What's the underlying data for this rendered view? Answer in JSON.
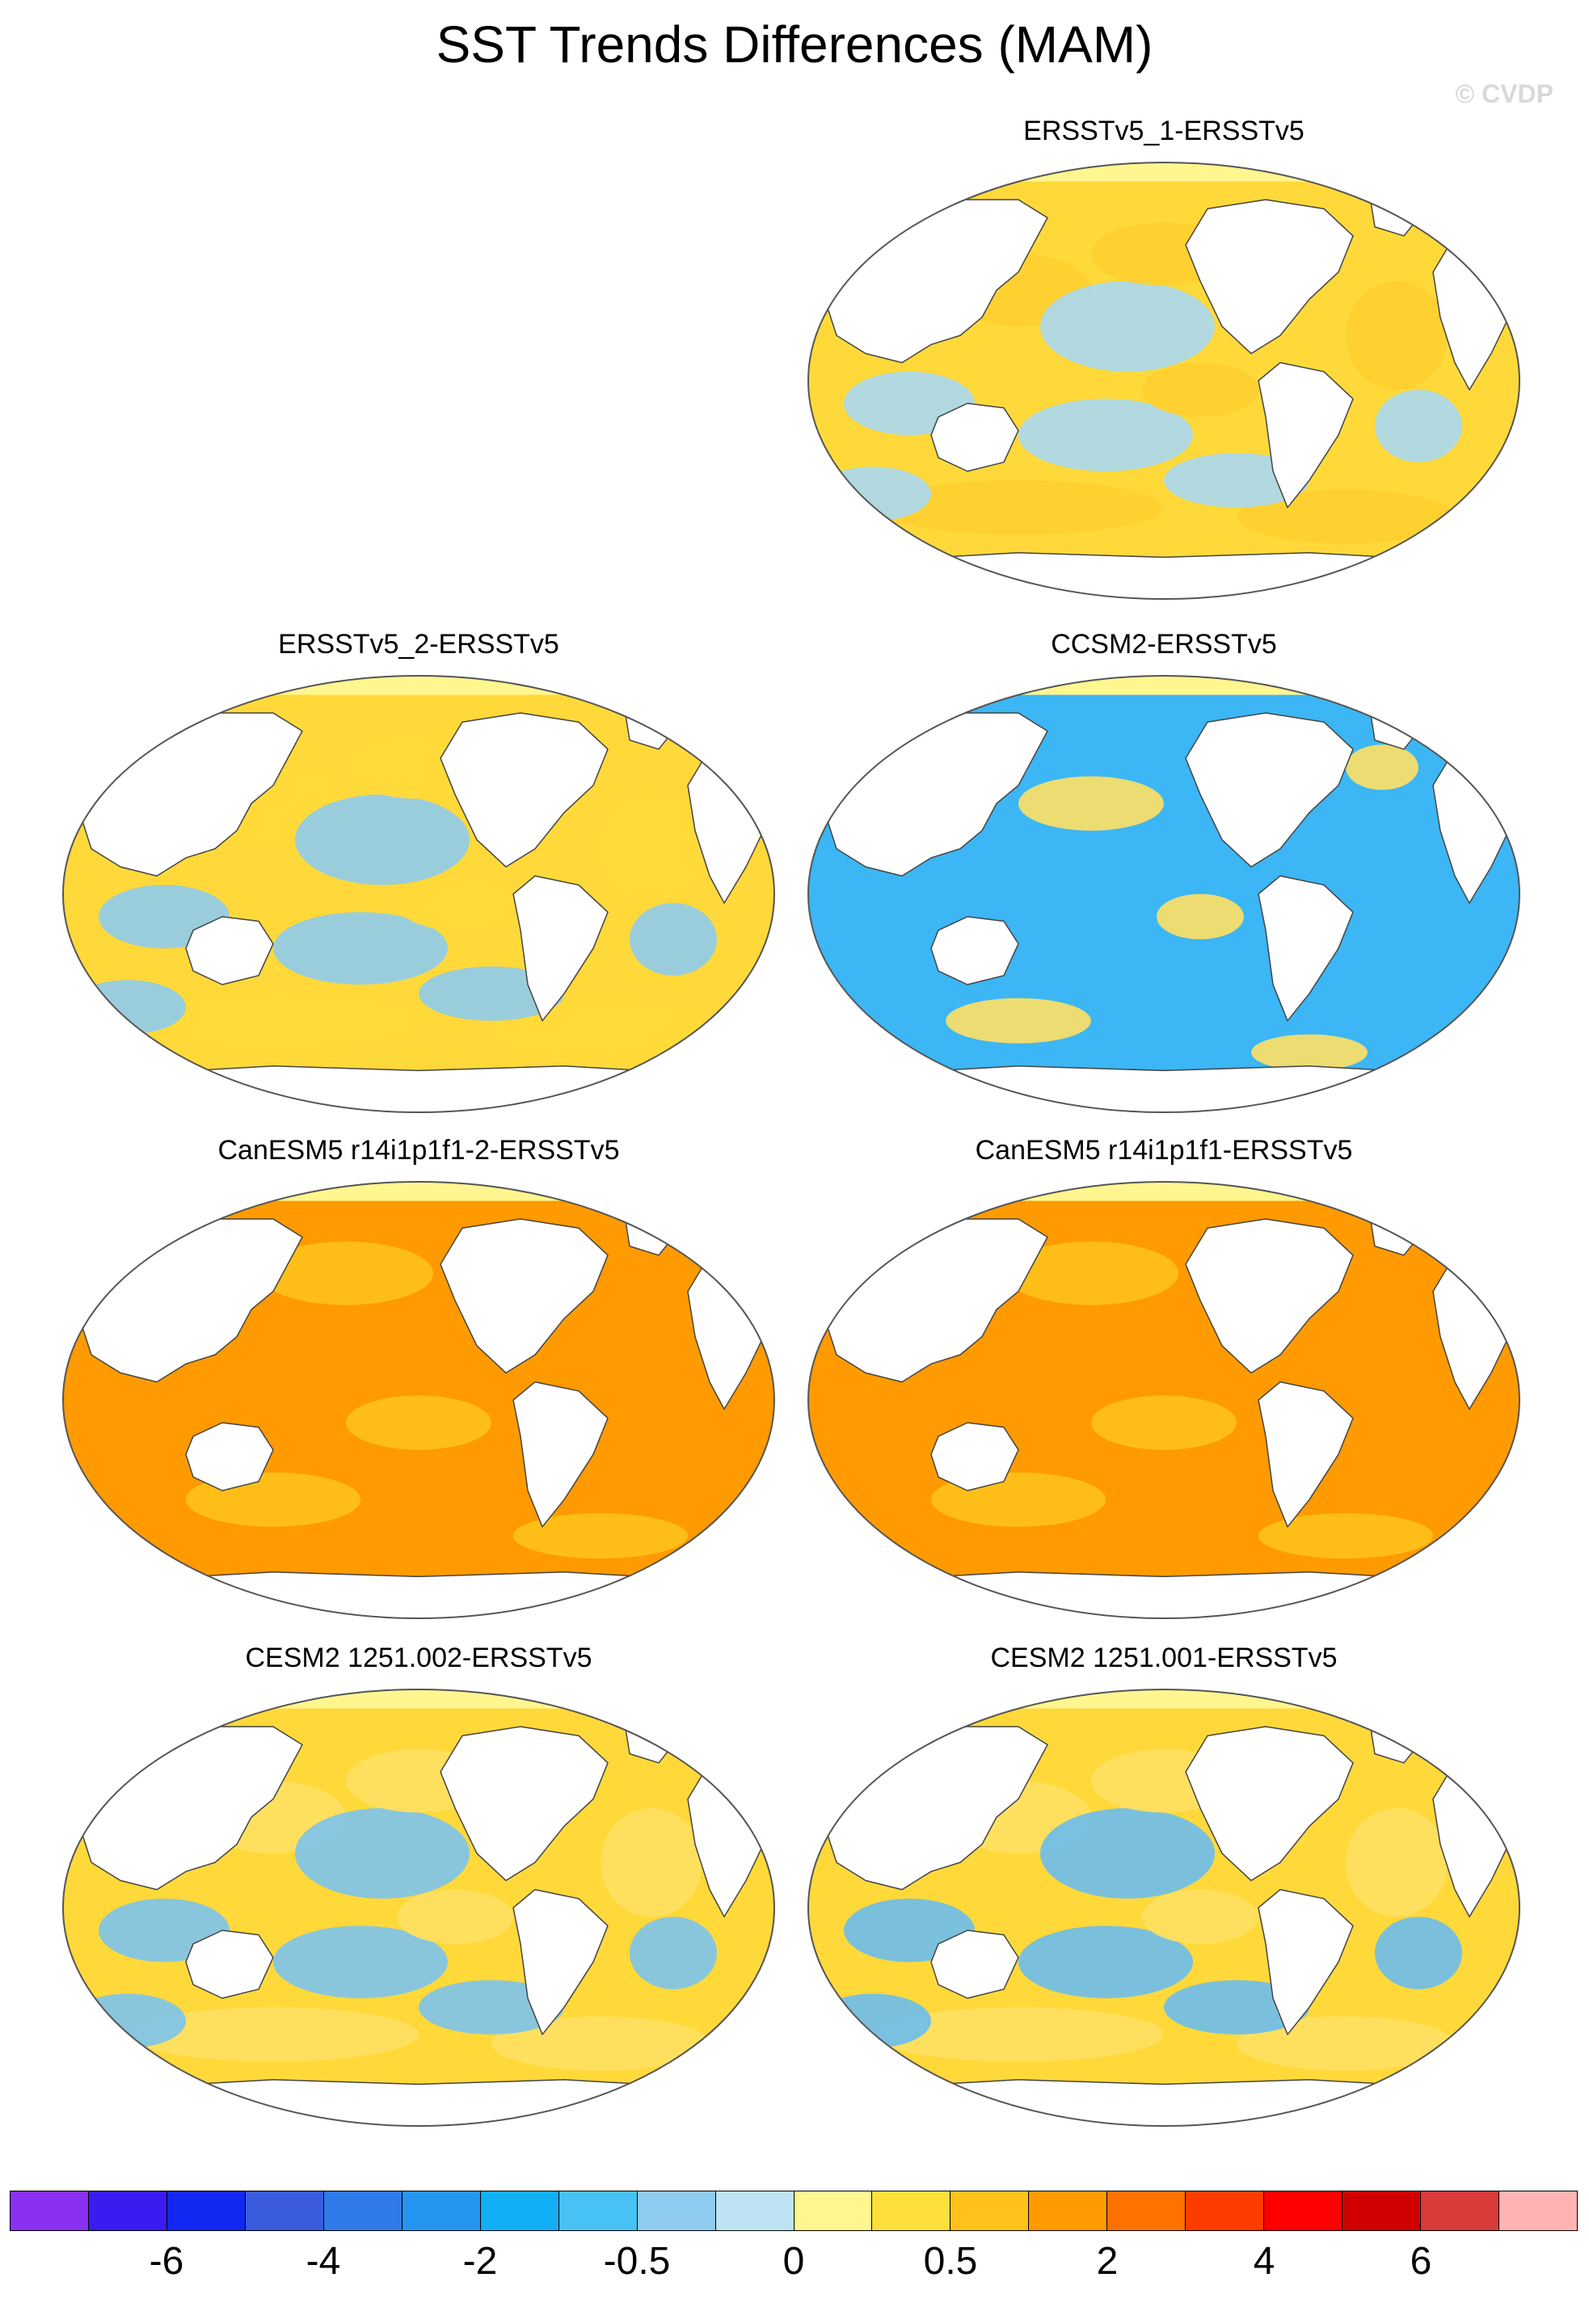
{
  "title": "SST Trends Differences (MAM)",
  "credit": "© CVDP",
  "colors": {
    "ocean_pos": "#ffd93a",
    "ocean_neg": "#9fd3f1",
    "coast": "#444444",
    "land": "#ffffff",
    "frame": "#555555"
  },
  "panels": [
    {
      "title": "ERSSTv5_1-ERSSTv5",
      "dominant": "mixed",
      "pos_color": "#ffcf30",
      "neg_color": "#a8d8f2"
    },
    {
      "title": "ERSSTv5_2-ERSSTv5",
      "dominant": "mixed",
      "pos_color": "#ffd93a",
      "neg_color": "#8fcbee"
    },
    {
      "title": "CCSM2-ERSSTv5",
      "dominant": "negative",
      "pos_color": "#ffe063",
      "neg_color": "#3cb6f4"
    },
    {
      "title": "CanESM5 r14i1p1f1-2-ERSSTv5",
      "dominant": "positive",
      "pos_color": "#ff9a00",
      "neg_color": "#ffc21a"
    },
    {
      "title": "CanESM5 r14i1p1f1-ERSSTv5",
      "dominant": "positive",
      "pos_color": "#ff9a00",
      "neg_color": "#ffc21a"
    },
    {
      "title": "CESM2 1251.002-ERSSTv5",
      "dominant": "mixed",
      "pos_color": "#ffe063",
      "neg_color": "#7cc3ee"
    },
    {
      "title": "CESM2 1251.001-ERSSTv5",
      "dominant": "mixed",
      "pos_color": "#ffe063",
      "neg_color": "#6cbcee"
    }
  ],
  "colorbar": {
    "colors": [
      "#8a30f0",
      "#3a1cf0",
      "#1228f2",
      "#3a5cdc",
      "#2f7ae8",
      "#2496f0",
      "#11b0f6",
      "#48c2f5",
      "#8fcbee",
      "#bde3f5",
      "#fff68f",
      "#ffe03a",
      "#ffc21a",
      "#ff9a00",
      "#ff7200",
      "#ff3c00",
      "#ff0000",
      "#d00000",
      "#d93a3a",
      "#ffb3b3"
    ],
    "labels": [
      {
        "text": "-6",
        "after_box": 2
      },
      {
        "text": "-4",
        "after_box": 4
      },
      {
        "text": "-2",
        "after_box": 6
      },
      {
        "text": "-0.5",
        "after_box": 8
      },
      {
        "text": "0",
        "after_box": 10
      },
      {
        "text": "0.5",
        "after_box": 12
      },
      {
        "text": "2",
        "after_box": 14
      },
      {
        "text": "4",
        "after_box": 16
      },
      {
        "text": "6",
        "after_box": 18
      }
    ]
  }
}
